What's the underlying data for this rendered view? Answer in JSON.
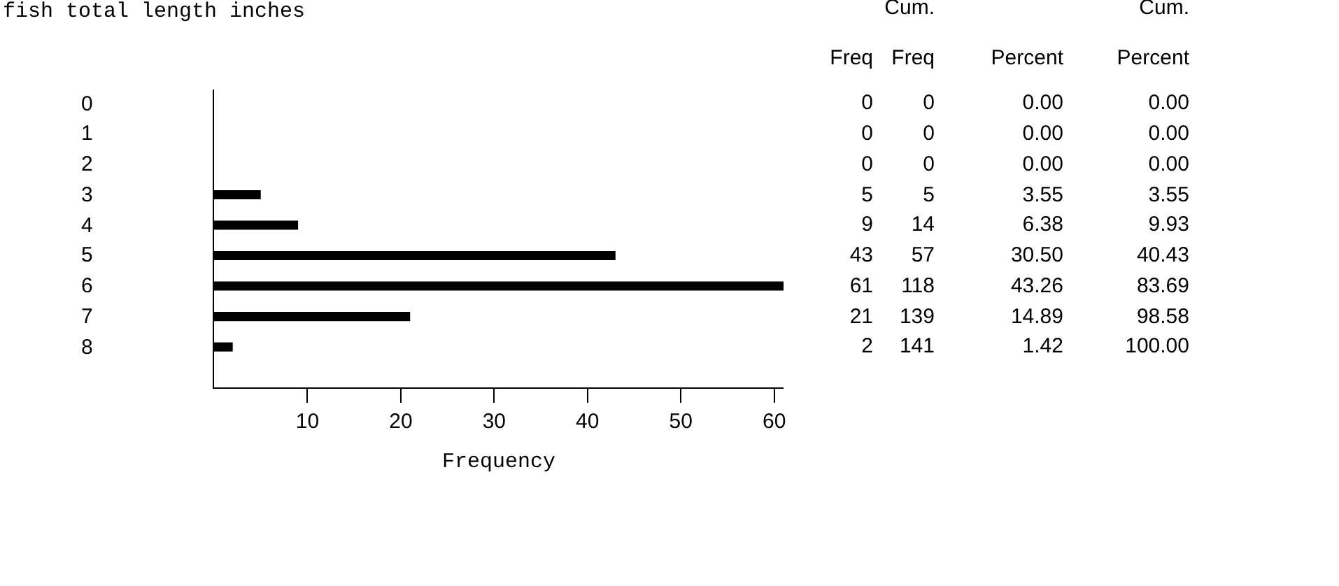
{
  "chart_data": [
    {
      "type": "bar",
      "orientation": "horizontal",
      "title": "fish total length inches",
      "xlabel": "Frequency",
      "categories": [
        "0",
        "1",
        "2",
        "3",
        "4",
        "5",
        "6",
        "7",
        "8"
      ],
      "values": [
        0,
        0,
        0,
        5,
        9,
        43,
        61,
        21,
        2
      ],
      "color": "#000000",
      "xlim": [
        0,
        61
      ],
      "xticks": [
        10,
        20,
        30,
        40,
        50,
        60
      ],
      "grid": false
    },
    {
      "type": "other",
      "annotations": [
        "Freq",
        "Cum. Freq",
        "Percent",
        "Cum. Percent",
        "0",
        "0",
        "0.00",
        "0.00",
        "0",
        "0",
        "0.00",
        "0.00",
        "0",
        "0",
        "0.00",
        "0.00",
        "5",
        "5",
        "3.55",
        "3.55",
        "9",
        "14",
        "6.38",
        "9.93",
        "43",
        "57",
        "30.50",
        "40.43",
        "61",
        "118",
        "43.26",
        "83.69",
        "21",
        "139",
        "14.89",
        "98.58",
        "2",
        "141",
        "1.42",
        "100.00"
      ]
    }
  ]
}
